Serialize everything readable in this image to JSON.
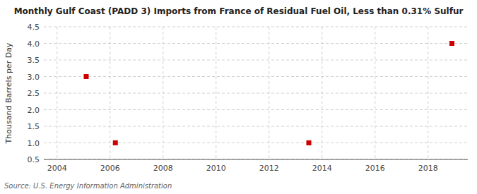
{
  "chart_data": {
    "type": "scatter",
    "title": "Monthly Gulf Coast (PADD 3) Imports from France of Residual Fuel Oil, Less than 0.31% Sulfur",
    "y_label": "Thousand Barrels per Day",
    "source": "Source: U.S. Energy Information Administration",
    "x": [
      2005.1,
      2006.2,
      2013.5,
      2018.9
    ],
    "values": [
      3.0,
      1.0,
      1.0,
      4.0
    ],
    "color": "#cc0000",
    "marker": "square",
    "xlim": [
      2003.5,
      2019.5
    ],
    "ylim": [
      0.5,
      4.5
    ],
    "xticks": [
      2004,
      2006,
      2008,
      2010,
      2012,
      2014,
      2016,
      2018
    ],
    "yticks": [
      0.5,
      {
        "value": 1.0,
        "label": "1.0"
      },
      1.5,
      {
        "value": 2.0,
        "label": "2.0"
      },
      2.5,
      {
        "value": 3.0,
        "label": "3.0"
      },
      3.5,
      {
        "value": 4.0,
        "label": "4.0"
      },
      4.5
    ],
    "grid": true
  }
}
